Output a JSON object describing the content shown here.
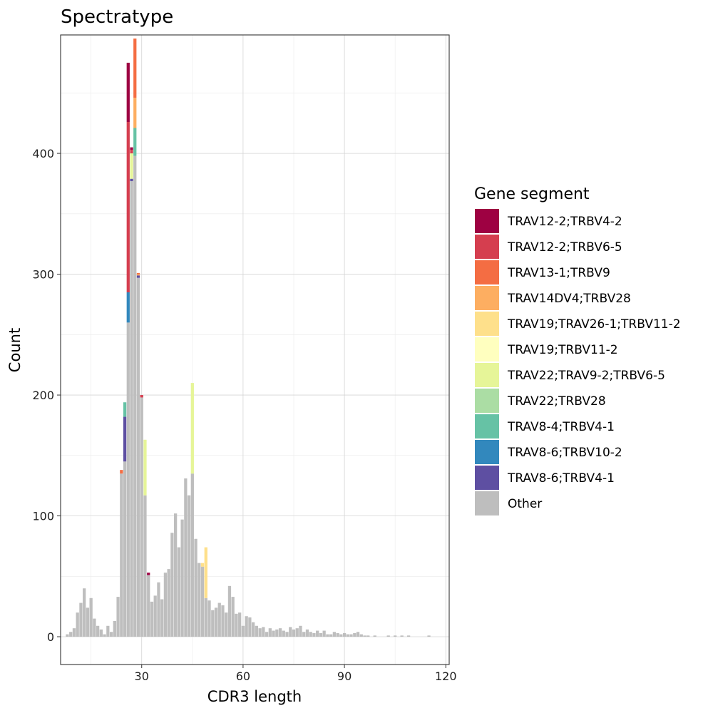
{
  "chart_data": {
    "type": "bar",
    "stacked": true,
    "title": "Spectratype",
    "xlabel": "CDR3 length",
    "ylabel": "Count",
    "xlim": [
      6,
      121
    ],
    "ylim": [
      -23,
      498
    ],
    "xticks": [
      30,
      60,
      90,
      120
    ],
    "yticks": [
      0,
      100,
      200,
      300,
      400
    ],
    "grid": true,
    "legend": {
      "title": "Gene segment",
      "position": "right",
      "entries": [
        {
          "name": "TRAV12-2;TRBV4-2",
          "color": "#9E0142"
        },
        {
          "name": "TRAV12-2;TRBV6-5",
          "color": "#D53E4F"
        },
        {
          "name": "TRAV13-1;TRBV9",
          "color": "#F46D43"
        },
        {
          "name": "TRAV14DV4;TRBV28",
          "color": "#FDAE61"
        },
        {
          "name": "TRAV19;TRAV26-1;TRBV11-2",
          "color": "#FEE08B"
        },
        {
          "name": "TRAV19;TRBV11-2",
          "color": "#FFFFBF"
        },
        {
          "name": "TRAV22;TRAV9-2;TRBV6-5",
          "color": "#E6F598"
        },
        {
          "name": "TRAV22;TRBV28",
          "color": "#ABDDA4"
        },
        {
          "name": "TRAV8-4;TRBV4-1",
          "color": "#66C2A5"
        },
        {
          "name": "TRAV8-6;TRBV10-2",
          "color": "#3288BD"
        },
        {
          "name": "TRAV8-6;TRBV4-1",
          "color": "#5E4FA2"
        },
        {
          "name": "Other",
          "color": "#BEBEBE"
        }
      ]
    },
    "other_counts": [
      [
        8,
        2
      ],
      [
        9,
        4
      ],
      [
        10,
        7
      ],
      [
        11,
        20
      ],
      [
        12,
        28
      ],
      [
        13,
        40
      ],
      [
        14,
        24
      ],
      [
        15,
        32
      ],
      [
        16,
        15
      ],
      [
        17,
        9
      ],
      [
        18,
        6
      ],
      [
        19,
        2
      ],
      [
        20,
        9
      ],
      [
        21,
        4
      ],
      [
        22,
        13
      ],
      [
        23,
        33
      ],
      [
        24,
        135
      ],
      [
        25,
        145
      ],
      [
        26,
        260
      ],
      [
        27,
        377
      ],
      [
        28,
        398
      ],
      [
        29,
        297
      ],
      [
        30,
        198
      ],
      [
        31,
        117
      ],
      [
        32,
        51
      ],
      [
        33,
        29
      ],
      [
        34,
        34
      ],
      [
        35,
        45
      ],
      [
        36,
        31
      ],
      [
        37,
        53
      ],
      [
        38,
        56
      ],
      [
        39,
        86
      ],
      [
        40,
        102
      ],
      [
        41,
        74
      ],
      [
        42,
        97
      ],
      [
        43,
        131
      ],
      [
        44,
        117
      ],
      [
        45,
        135
      ],
      [
        46,
        81
      ],
      [
        47,
        61
      ],
      [
        48,
        58
      ],
      [
        49,
        32
      ],
      [
        50,
        30
      ],
      [
        51,
        22
      ],
      [
        52,
        24
      ],
      [
        53,
        28
      ],
      [
        54,
        26
      ],
      [
        55,
        20
      ],
      [
        56,
        42
      ],
      [
        57,
        33
      ],
      [
        58,
        19
      ],
      [
        59,
        20
      ],
      [
        60,
        9
      ],
      [
        61,
        17
      ],
      [
        62,
        16
      ],
      [
        63,
        12
      ],
      [
        64,
        9
      ],
      [
        65,
        7
      ],
      [
        66,
        8
      ],
      [
        67,
        4
      ],
      [
        68,
        7
      ],
      [
        69,
        5
      ],
      [
        70,
        6
      ],
      [
        71,
        7
      ],
      [
        72,
        5
      ],
      [
        73,
        4
      ],
      [
        74,
        8
      ],
      [
        75,
        6
      ],
      [
        76,
        7
      ],
      [
        77,
        9
      ],
      [
        78,
        4
      ],
      [
        79,
        6
      ],
      [
        80,
        4
      ],
      [
        81,
        3
      ],
      [
        82,
        5
      ],
      [
        83,
        3
      ],
      [
        84,
        5
      ],
      [
        85,
        2
      ],
      [
        86,
        2
      ],
      [
        87,
        4
      ],
      [
        88,
        3
      ],
      [
        89,
        2
      ],
      [
        90,
        3
      ],
      [
        91,
        2
      ],
      [
        92,
        2
      ],
      [
        93,
        3
      ],
      [
        94,
        4
      ],
      [
        95,
        2
      ],
      [
        96,
        1
      ],
      [
        97,
        1
      ],
      [
        99,
        1
      ],
      [
        103,
        1
      ],
      [
        105,
        1
      ],
      [
        107,
        1
      ],
      [
        109,
        1
      ],
      [
        115,
        1
      ]
    ],
    "segments": [
      {
        "x": 24,
        "name": "TRAV13-1;TRBV9",
        "value": 3
      },
      {
        "x": 25,
        "name": "TRAV8-6;TRBV4-1",
        "value": 37
      },
      {
        "x": 25,
        "name": "TRAV8-4;TRBV4-1",
        "value": 12
      },
      {
        "x": 26,
        "name": "TRAV8-6;TRBV10-2",
        "value": 25
      },
      {
        "x": 26,
        "name": "TRAV12-2;TRBV6-5",
        "value": 141
      },
      {
        "x": 26,
        "name": "TRAV12-2;TRBV4-2",
        "value": 49
      },
      {
        "x": 27,
        "name": "TRAV8-6;TRBV4-1",
        "value": 2
      },
      {
        "x": 27,
        "name": "TRAV22;TRAV9-2;TRBV6-5",
        "value": 21
      },
      {
        "x": 27,
        "name": "TRAV12-2;TRBV6-5",
        "value": 3
      },
      {
        "x": 27,
        "name": "TRAV12-2;TRBV4-2",
        "value": 2
      },
      {
        "x": 28,
        "name": "TRAV8-4;TRBV4-1",
        "value": 23
      },
      {
        "x": 28,
        "name": "TRAV14DV4;TRBV28",
        "value": 25
      },
      {
        "x": 28,
        "name": "TRAV13-1;TRBV9",
        "value": 49
      },
      {
        "x": 29,
        "name": "TRAV8-6;TRBV4-1",
        "value": 2
      },
      {
        "x": 29,
        "name": "TRAV14DV4;TRBV28",
        "value": 1
      },
      {
        "x": 29,
        "name": "TRAV13-1;TRBV9",
        "value": 1
      },
      {
        "x": 30,
        "name": "TRAV12-2;TRBV6-5",
        "value": 2
      },
      {
        "x": 31,
        "name": "TRAV22;TRAV9-2;TRBV6-5",
        "value": 46
      },
      {
        "x": 32,
        "name": "TRAV12-2;TRBV4-2",
        "value": 2
      },
      {
        "x": 45,
        "name": "TRAV22;TRAV9-2;TRBV6-5",
        "value": 75
      },
      {
        "x": 48,
        "name": "TRAV19;TRAV26-1;TRBV11-2",
        "value": 3
      },
      {
        "x": 49,
        "name": "TRAV19;TRAV26-1;TRBV11-2",
        "value": 42
      }
    ]
  }
}
